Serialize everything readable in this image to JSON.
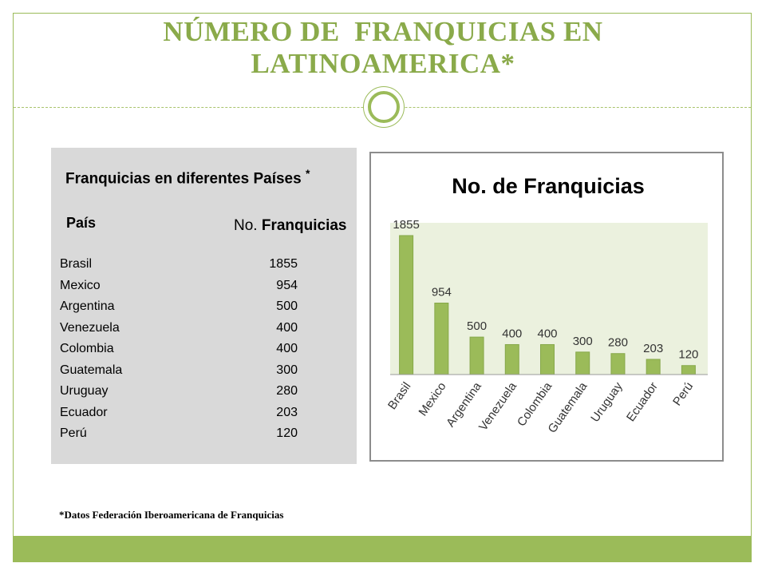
{
  "slide": {
    "title_line1": "NÚMERO DE  FRANQUICIAS EN",
    "title_line2": "LATINOAMERICA*",
    "footnote": "*Datos Federación Iberoamericana de Franquicias",
    "accent_color": "#9bbb59",
    "title_color": "#8aaa4a"
  },
  "table": {
    "title": "Franquicias en diferentes Países",
    "title_mark": "*",
    "col_country": "País",
    "col_count_prefix": "No.",
    "col_count_bold": "Franquicias",
    "rows": [
      {
        "country": "Brasil",
        "count": "1855"
      },
      {
        "country": "Mexico",
        "count": "954"
      },
      {
        "country": "Argentina",
        "count": "500"
      },
      {
        "country": "Venezuela",
        "count": "400"
      },
      {
        "country": "Colombia",
        "count": "400"
      },
      {
        "country": "Guatemala",
        "count": "300"
      },
      {
        "country": "Uruguay",
        "count": "280"
      },
      {
        "country": "Ecuador",
        "count": "203"
      },
      {
        "country": "Perú",
        "count": "120"
      }
    ]
  },
  "chart_data": {
    "type": "bar",
    "title": "No. de Franquicias",
    "categories": [
      "Brasil",
      "Mexico",
      "Argentina",
      "Venezuela",
      "Colombia",
      "Guatemala",
      "Uruguay",
      "Ecuador",
      "Perú"
    ],
    "values": [
      1855,
      954,
      500,
      400,
      400,
      300,
      280,
      203,
      120
    ],
    "ylim": [
      0,
      2100
    ],
    "bar_color": "#9bbb59",
    "plot_background": "#ebf1de",
    "data_labels": true,
    "legend": "none",
    "grid": false
  }
}
